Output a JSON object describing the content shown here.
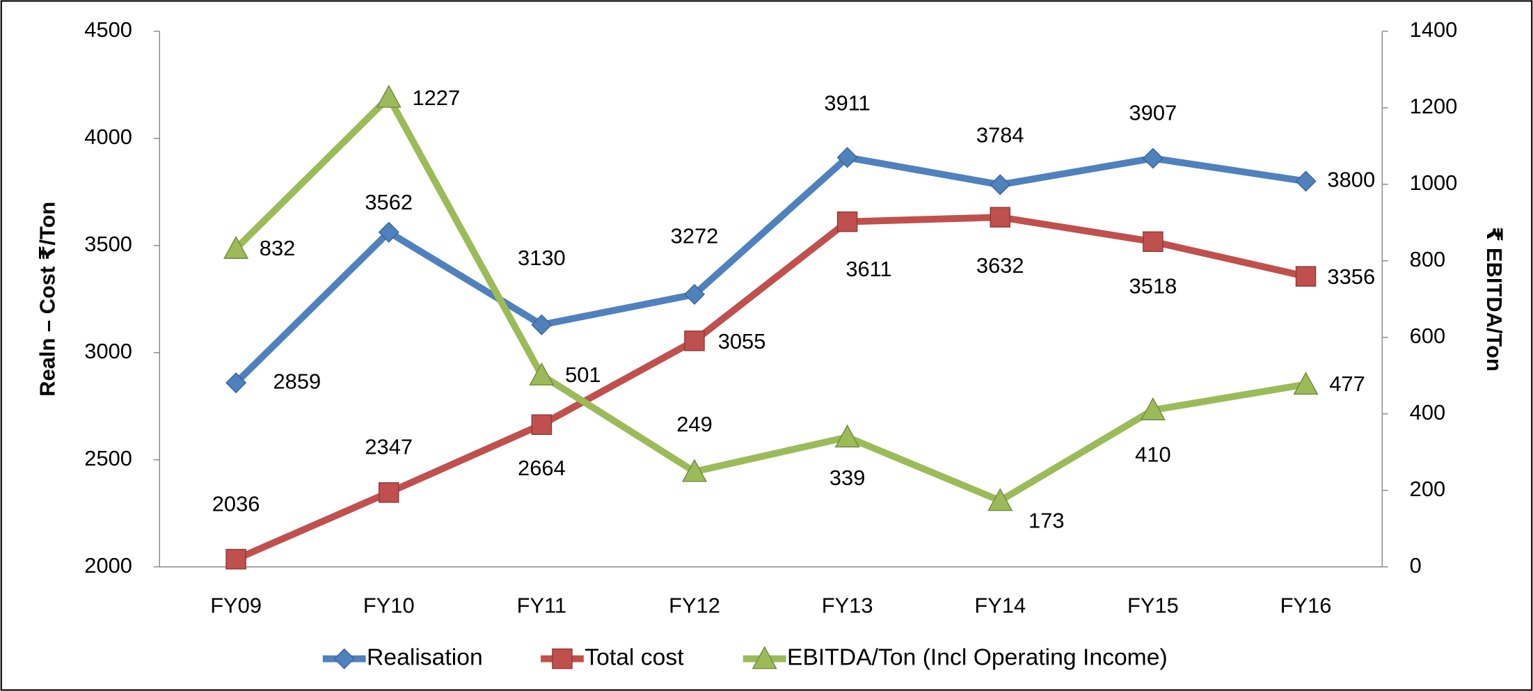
{
  "chart_data": {
    "type": "line",
    "categories": [
      "FY09",
      "FY10",
      "FY11",
      "FY12",
      "FY13",
      "FY14",
      "FY15",
      "FY16"
    ],
    "ylabel": "Realn – Cost ₹/Ton",
    "y2label": "₹ EBITDA/Ton",
    "ylim": [
      2000,
      4500
    ],
    "yticks": [
      2000,
      2500,
      3000,
      3500,
      4000,
      4500
    ],
    "y2lim": [
      0,
      1400
    ],
    "y2ticks": [
      0,
      200,
      400,
      600,
      800,
      1000,
      1200,
      1400
    ],
    "legend": "bottom",
    "series": [
      {
        "name": "Realisation",
        "color": "#4f81bd",
        "label_color": "#4f81bd",
        "marker": "diamond",
        "values": [
          2859,
          3562,
          3130,
          3272,
          3911,
          3784,
          3907,
          3800
        ]
      },
      {
        "name": "Total cost",
        "color": "#c0504d",
        "label_color": "#c00000",
        "marker": "square",
        "values": [
          2036,
          2347,
          2664,
          3055,
          3611,
          3632,
          3518,
          3356
        ]
      },
      {
        "name": "EBITDA/Ton (Incl Operating Income)",
        "color": "#9bbb59",
        "label_color": "#92d050",
        "marker": "triangle",
        "axis": "y2",
        "values": [
          832,
          1227,
          501,
          249,
          339,
          173,
          410,
          477
        ]
      }
    ]
  }
}
